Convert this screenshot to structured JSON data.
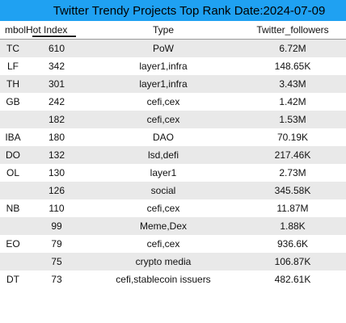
{
  "title": "Twitter Trendy Projects Top Rank Date:2024-07-09",
  "colors": {
    "title_bar": "#1fa1f2",
    "row_stripe": "#e9e9e9",
    "row_plain": "#ffffff"
  },
  "columns": {
    "symbol": "mbol",
    "hot_index": "Hot Index",
    "type": "Type",
    "followers": "Twitter_followers"
  },
  "rows": [
    {
      "symbol": "TC",
      "hot_index": "610",
      "type": "PoW",
      "followers": "6.72M"
    },
    {
      "symbol": "LF",
      "hot_index": "342",
      "type": "layer1,infra",
      "followers": "148.65K"
    },
    {
      "symbol": "TH",
      "hot_index": "301",
      "type": "layer1,infra",
      "followers": "3.43M"
    },
    {
      "symbol": "GB",
      "hot_index": "242",
      "type": "cefi,cex",
      "followers": "1.42M"
    },
    {
      "symbol": "",
      "hot_index": "182",
      "type": "cefi,cex",
      "followers": "1.53M"
    },
    {
      "symbol": "IBA",
      "hot_index": "180",
      "type": "DAO",
      "followers": "70.19K"
    },
    {
      "symbol": "DO",
      "hot_index": "132",
      "type": "lsd,defi",
      "followers": "217.46K"
    },
    {
      "symbol": "OL",
      "hot_index": "130",
      "type": "layer1",
      "followers": "2.73M"
    },
    {
      "symbol": "",
      "hot_index": "126",
      "type": "social",
      "followers": "345.58K"
    },
    {
      "symbol": "NB",
      "hot_index": "110",
      "type": "cefi,cex",
      "followers": "11.87M"
    },
    {
      "symbol": "",
      "hot_index": "99",
      "type": "Meme,Dex",
      "followers": "1.88K"
    },
    {
      "symbol": "EO",
      "hot_index": "79",
      "type": "cefi,cex",
      "followers": "936.6K"
    },
    {
      "symbol": "",
      "hot_index": "75",
      "type": "crypto media",
      "followers": "106.87K"
    },
    {
      "symbol": "DT",
      "hot_index": "73",
      "type": "cefi,stablecoin issuers",
      "followers": "482.61K"
    }
  ]
}
